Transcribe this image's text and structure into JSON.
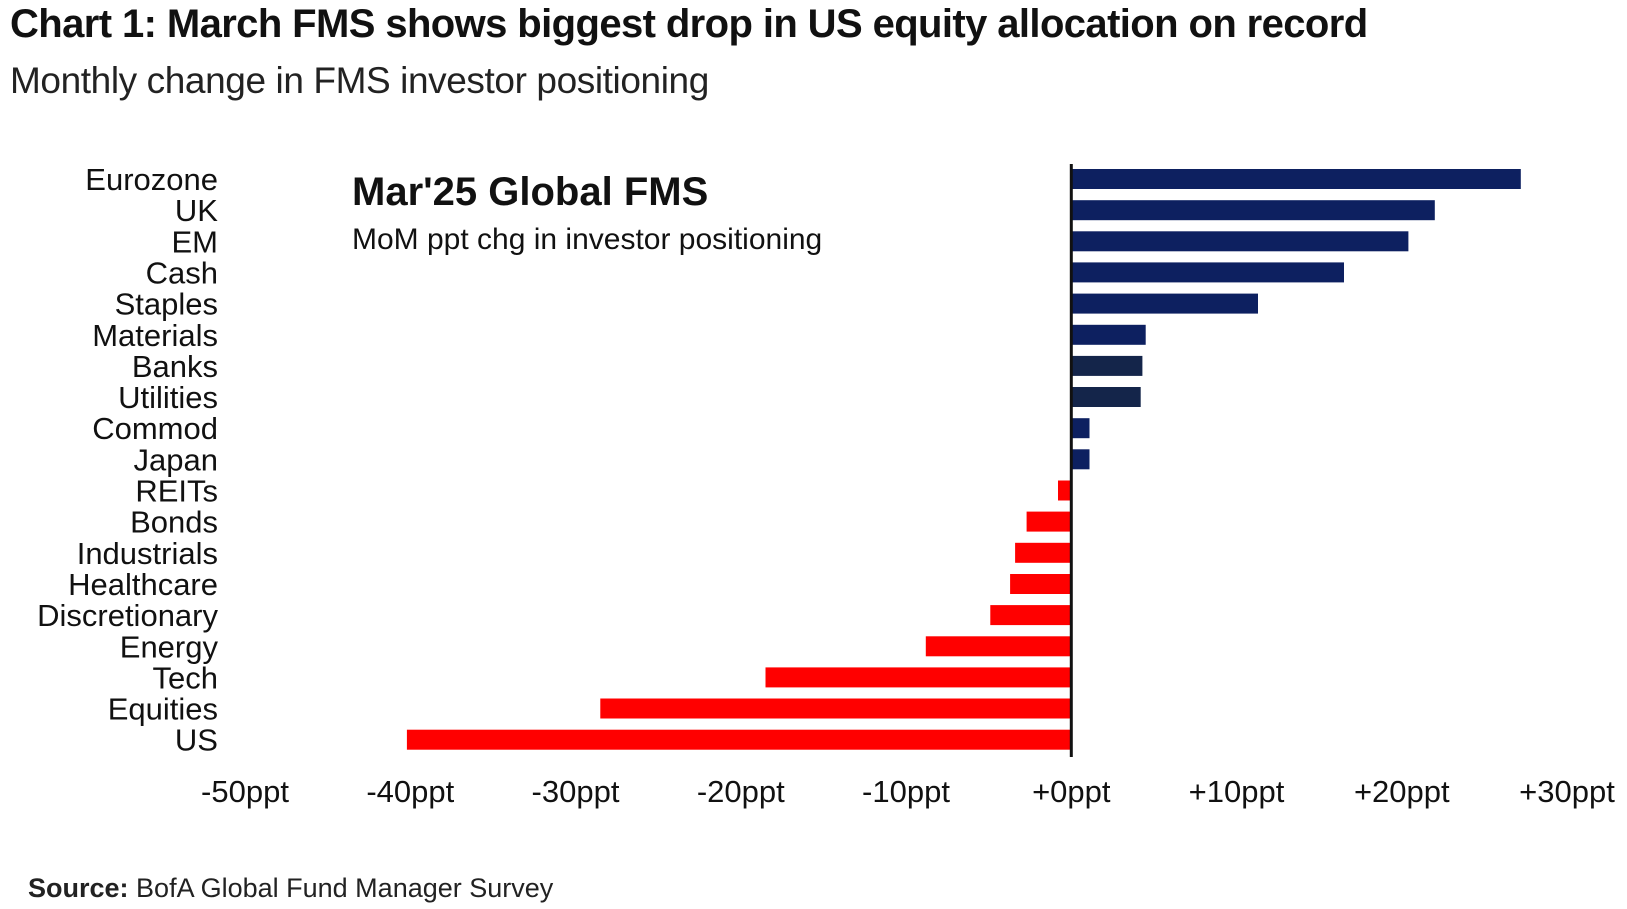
{
  "header": {
    "title": "Chart 1: March FMS shows biggest drop in US equity allocation on record",
    "subtitle": "Monthly change in FMS investor positioning"
  },
  "footer": {
    "source_label": "Source:",
    "source_text": "BofA Global Fund Manager Survey"
  },
  "colors": {
    "positive": "#0d2060",
    "positive_dark": "#14254a",
    "negative": "#ff0000",
    "axis": "#111111"
  },
  "chart_data": {
    "type": "bar",
    "orientation": "horizontal",
    "inset_title": "Mar'25 Global FMS",
    "inset_subtitle": "MoM ppt chg in investor positioning",
    "categories": [
      "Eurozone",
      "UK",
      "EM",
      "Cash",
      "Staples",
      "Materials",
      "Banks",
      "Utilities",
      "Commod",
      "Japan",
      "REITs",
      "Bonds",
      "Industrials",
      "Healthcare",
      "Discretionary",
      "Energy",
      "Tech",
      "Equities",
      "US"
    ],
    "values": [
      27.2,
      22.0,
      20.4,
      16.5,
      11.3,
      4.5,
      4.3,
      4.2,
      1.1,
      1.1,
      -0.8,
      -2.7,
      -3.4,
      -3.7,
      -4.9,
      -8.8,
      -18.5,
      -28.5,
      -40.2
    ],
    "xlim": [
      -50,
      30
    ],
    "xticks": [
      -50,
      -40,
      -30,
      -20,
      -10,
      0,
      10,
      20,
      30
    ],
    "xtick_labels": [
      "-50ppt",
      "-40ppt",
      "-30ppt",
      "-20ppt",
      "-10ppt",
      "+0ppt",
      "+10ppt",
      "+20ppt",
      "+30ppt"
    ],
    "xlabel": "",
    "ylabel": "",
    "grid": false,
    "legend": "none"
  }
}
